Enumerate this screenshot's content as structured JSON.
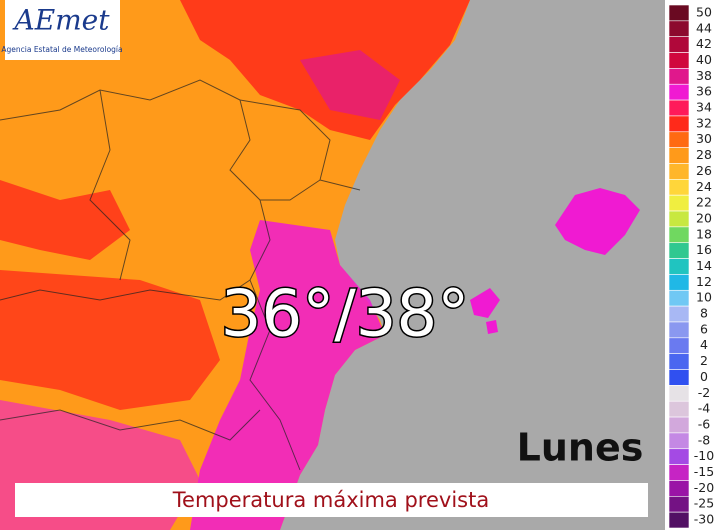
{
  "logo": {
    "name": "AEmet",
    "subtitle": "Agencia Estatal de Meteorología"
  },
  "headline": "36°/38°",
  "day": "Lunes",
  "caption": "Temperatura máxima prevista",
  "legend": [
    {
      "value": 50,
      "color": "#6a0a22"
    },
    {
      "value": 44,
      "color": "#8c0a2e"
    },
    {
      "value": 42,
      "color": "#b0083a"
    },
    {
      "value": 40,
      "color": "#d0073e"
    },
    {
      "value": 38,
      "color": "#e0188c"
    },
    {
      "value": 36,
      "color": "#f01ad2"
    },
    {
      "value": 34,
      "color": "#ff1a5a"
    },
    {
      "value": 32,
      "color": "#ff2a1a"
    },
    {
      "value": 30,
      "color": "#ff6a12"
    },
    {
      "value": 28,
      "color": "#ff9a1a"
    },
    {
      "value": 26,
      "color": "#ffb62a"
    },
    {
      "value": 24,
      "color": "#ffd63a"
    },
    {
      "value": 22,
      "color": "#f0ee40"
    },
    {
      "value": 20,
      "color": "#c8e840"
    },
    {
      "value": 18,
      "color": "#70d860"
    },
    {
      "value": 16,
      "color": "#30c890"
    },
    {
      "value": 14,
      "color": "#20c4c0"
    },
    {
      "value": 12,
      "color": "#20b8e6"
    },
    {
      "value": 10,
      "color": "#70c8f4"
    },
    {
      "value": 8,
      "color": "#a8b8f4"
    },
    {
      "value": 6,
      "color": "#8a98f0"
    },
    {
      "value": 4,
      "color": "#6a7af0"
    },
    {
      "value": 2,
      "color": "#4a66f0"
    },
    {
      "value": 0,
      "color": "#3050f0"
    },
    {
      "value": -2,
      "color": "#e6e2e6"
    },
    {
      "value": -4,
      "color": "#dcc6dc"
    },
    {
      "value": -6,
      "color": "#d2a8dc"
    },
    {
      "value": -8,
      "color": "#c488e4"
    },
    {
      "value": -10,
      "color": "#a44ae4"
    },
    {
      "value": -15,
      "color": "#c624c4"
    },
    {
      "value": -20,
      "color": "#9a14a6"
    },
    {
      "value": -25,
      "color": "#741284"
    },
    {
      "value": -30,
      "color": "#521064"
    }
  ]
}
